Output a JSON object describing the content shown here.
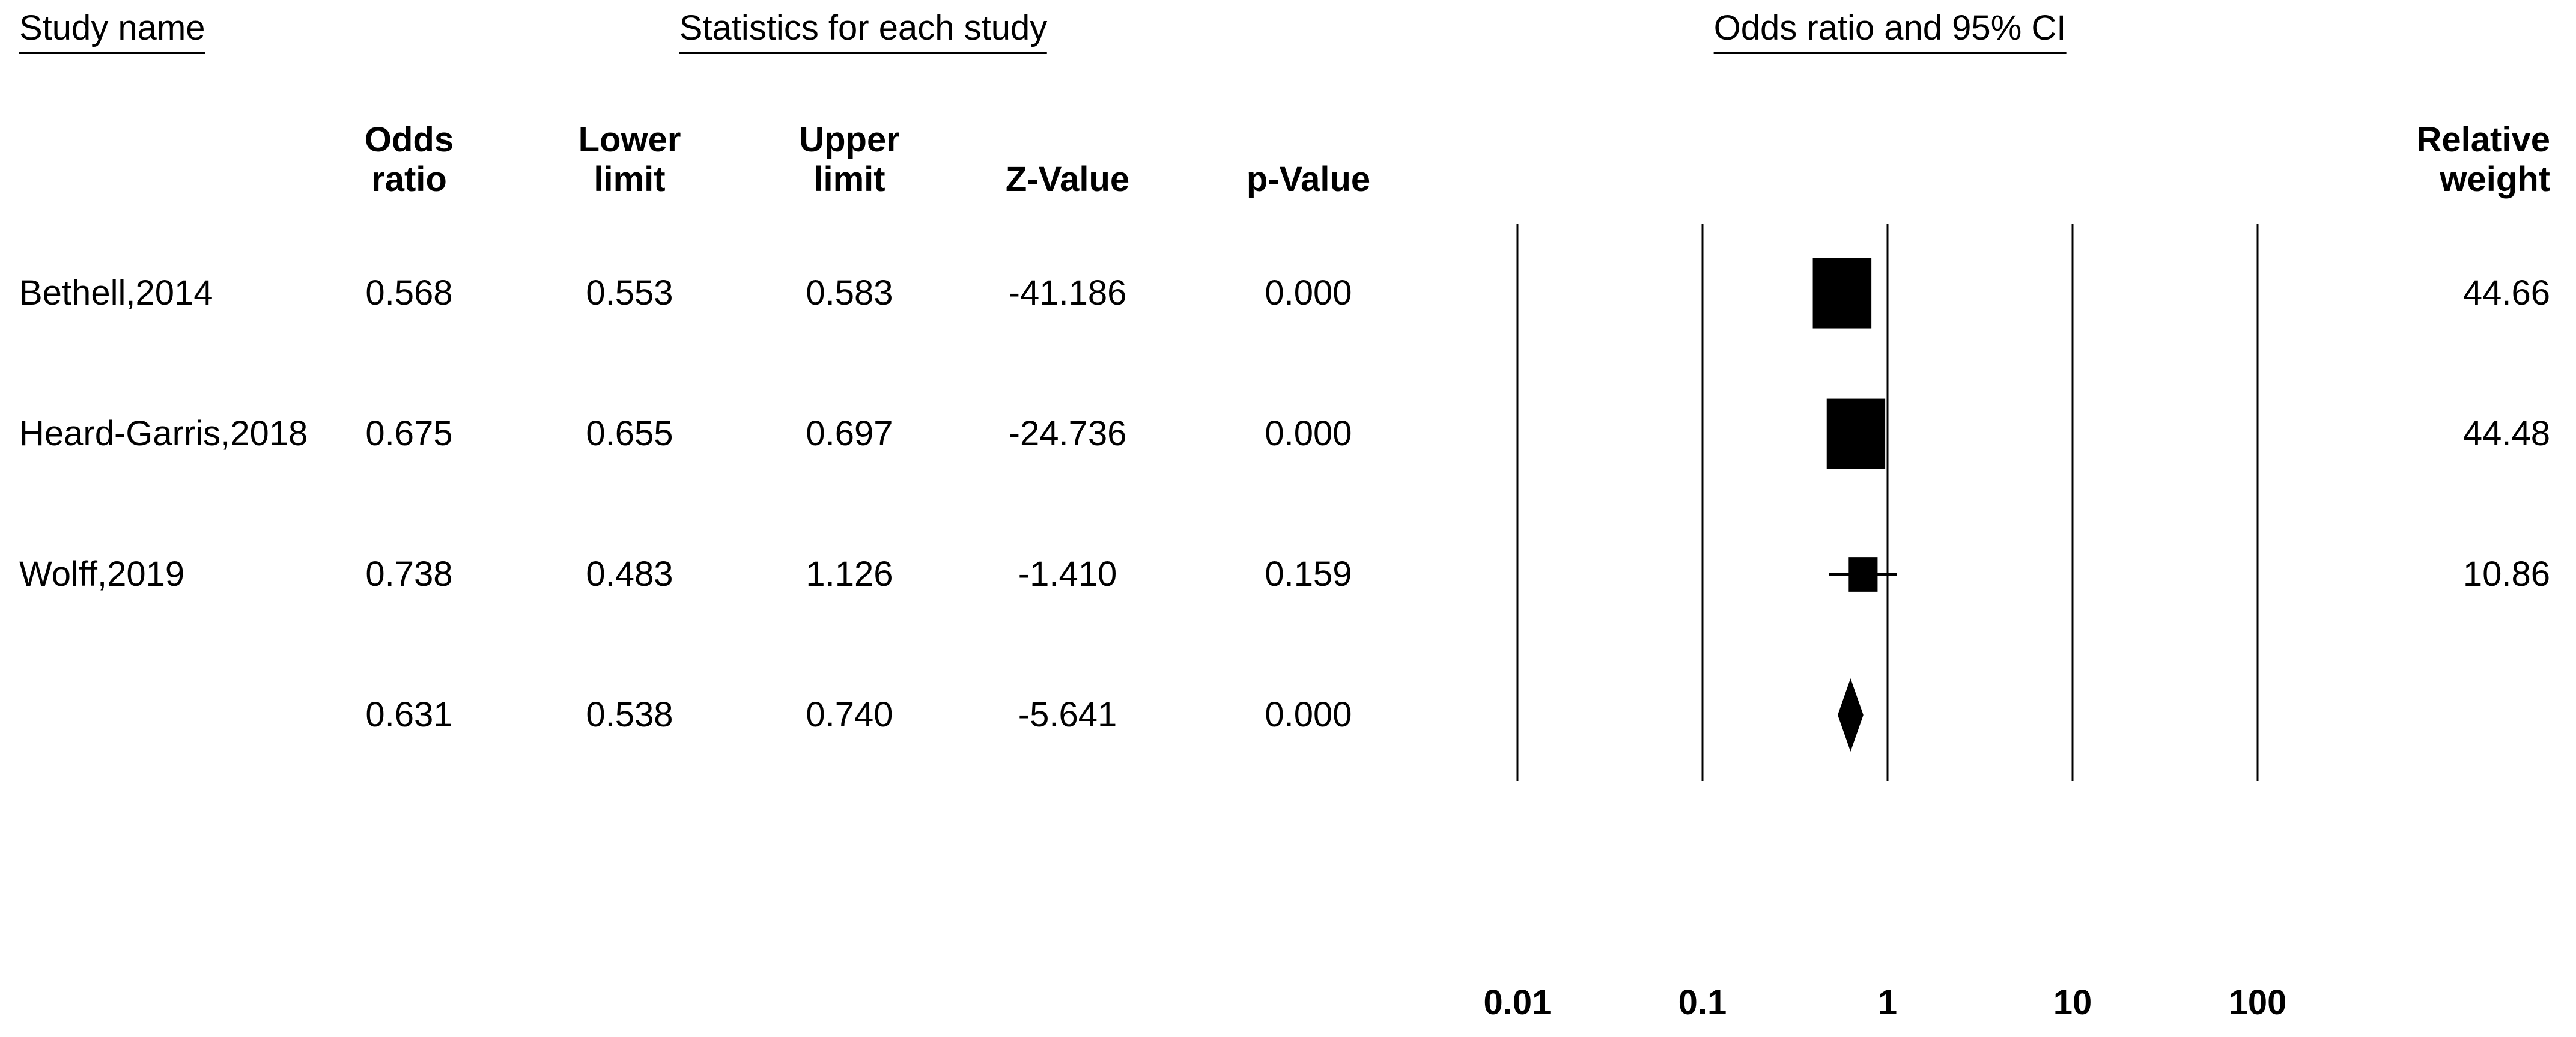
{
  "headers": {
    "study_name": "Study name",
    "statistics": "Statistics for each study",
    "plot": "Odds ratio and 95% CI"
  },
  "columns": {
    "odds_ratio": [
      "Odds",
      "ratio"
    ],
    "lower_limit": [
      "Lower",
      "limit"
    ],
    "upper_limit": [
      "Upper",
      "limit"
    ],
    "z_value": [
      "",
      "Z-Value"
    ],
    "p_value": [
      "",
      "p-Value"
    ],
    "relative_weight": [
      "Relative",
      "weight"
    ]
  },
  "colors": {
    "foreground": "#000000",
    "background": "#ffffff"
  },
  "chart_data": {
    "type": "forest",
    "x_scale": "log10",
    "x_ticks": [
      "0.01",
      "0.1",
      "1",
      "10",
      "100"
    ],
    "xlim": [
      0.01,
      100
    ],
    "grid": "vertical-lines-at-ticks",
    "studies": [
      {
        "name": "Bethell,2014",
        "odds_ratio": "0.568",
        "lower_limit": "0.553",
        "upper_limit": "0.583",
        "z_value": "-41.186",
        "p_value": "0.000",
        "relative_weight": "44.66"
      },
      {
        "name": "Heard-Garris,2018",
        "odds_ratio": "0.675",
        "lower_limit": "0.655",
        "upper_limit": "0.697",
        "z_value": "-24.736",
        "p_value": "0.000",
        "relative_weight": "44.48"
      },
      {
        "name": "Wolff,2019",
        "odds_ratio": "0.738",
        "lower_limit": "0.483",
        "upper_limit": "1.126",
        "z_value": "-1.410",
        "p_value": "0.159",
        "relative_weight": "10.86"
      }
    ],
    "summary": {
      "name": "",
      "odds_ratio": "0.631",
      "lower_limit": "0.538",
      "upper_limit": "0.740",
      "z_value": "-5.641",
      "p_value": "0.000",
      "relative_weight": ""
    }
  }
}
